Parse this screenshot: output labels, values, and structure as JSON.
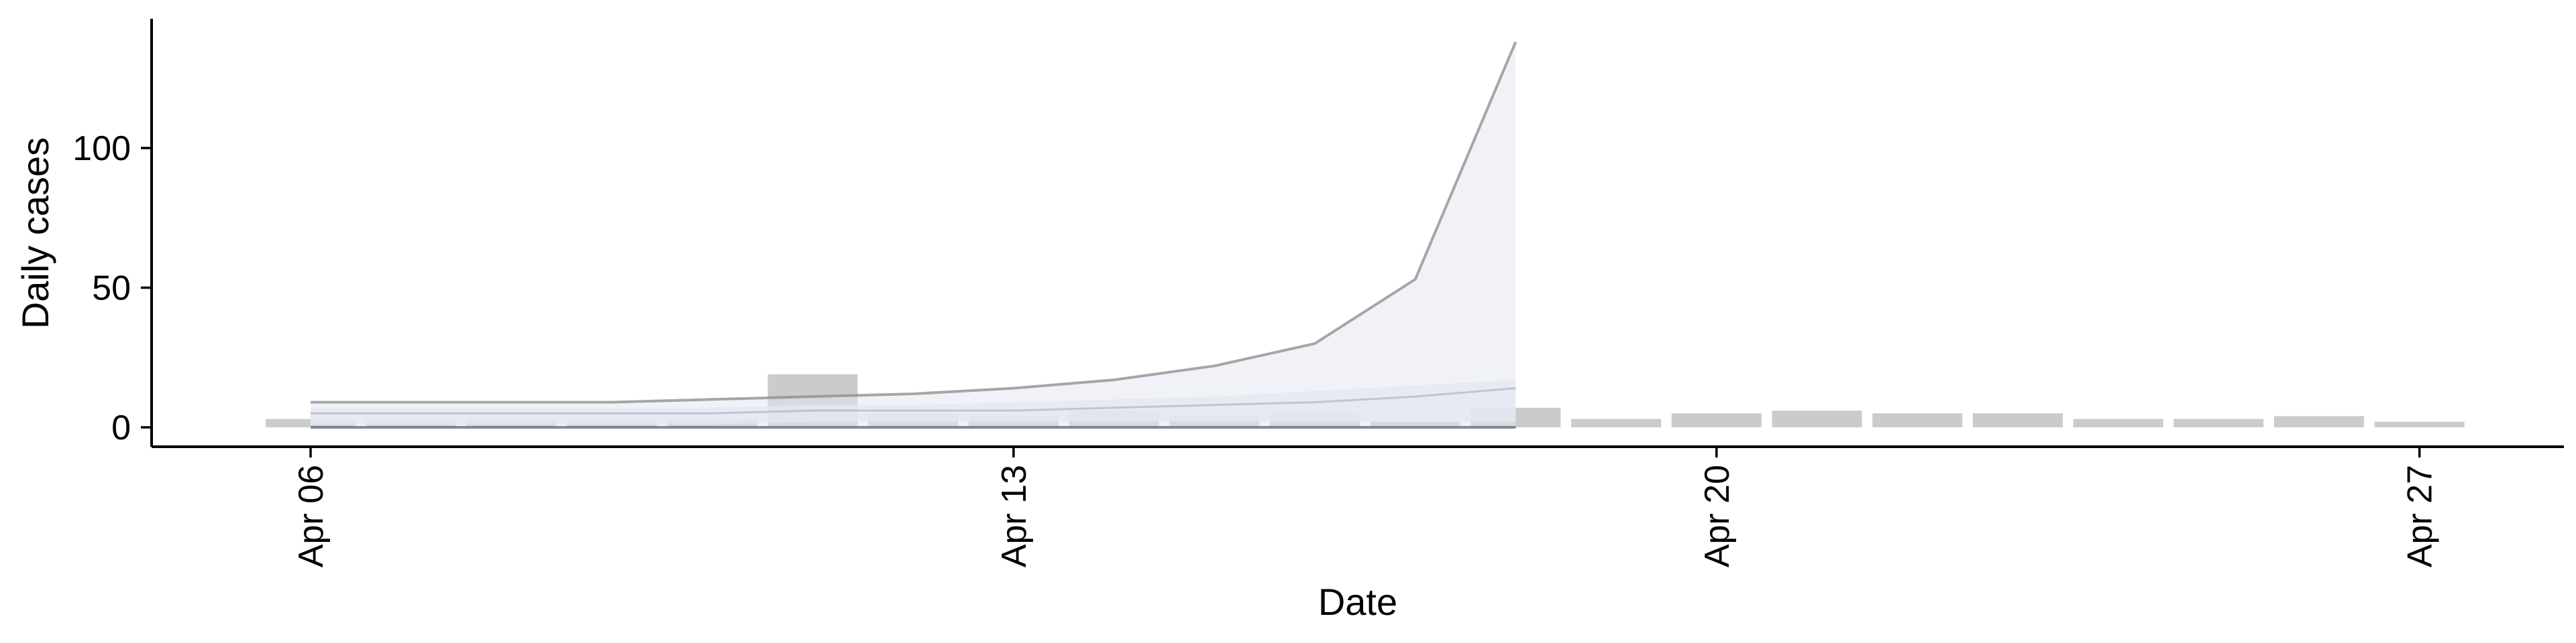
{
  "chart_data": {
    "type": "bar",
    "xlabel": "Date",
    "ylabel": "Daily cases",
    "x_tick_labels": [
      "Apr 06",
      "Apr 13",
      "Apr 20",
      "Apr 27"
    ],
    "x_tick_dates": [
      "2020-04-06",
      "2020-04-13",
      "2020-04-20",
      "2020-04-27"
    ],
    "y_ticks": [
      0,
      50,
      100
    ],
    "ylim": [
      -6,
      145
    ],
    "xlim": [
      "2020-04-04",
      "2020-04-29"
    ],
    "grid": false,
    "legend": "none",
    "bars": {
      "name": "",
      "color": "#c8c8c8",
      "dates": [
        "2020-04-06",
        "2020-04-07",
        "2020-04-08",
        "2020-04-09",
        "2020-04-10",
        "2020-04-11",
        "2020-04-12",
        "2020-04-13",
        "2020-04-14",
        "2020-04-15",
        "2020-04-16",
        "2020-04-17",
        "2020-04-18",
        "2020-04-19",
        "2020-04-20",
        "2020-04-21",
        "2020-04-22",
        "2020-04-23",
        "2020-04-24",
        "2020-04-25",
        "2020-04-26",
        "2020-04-27"
      ],
      "values": [
        3,
        3,
        3,
        3,
        3,
        19,
        5,
        4,
        6,
        4,
        5,
        2,
        7,
        3,
        5,
        6,
        5,
        5,
        3,
        3,
        4,
        2
      ]
    },
    "nowcast": {
      "color": "#9aa0b0",
      "dates": [
        "2020-04-06",
        "2020-04-07",
        "2020-04-08",
        "2020-04-09",
        "2020-04-10",
        "2020-04-11",
        "2020-04-12",
        "2020-04-13",
        "2020-04-14",
        "2020-04-15",
        "2020-04-16",
        "2020-04-17",
        "2020-04-18"
      ],
      "median": [
        5,
        5,
        5,
        5,
        5,
        6,
        6,
        6,
        7,
        8,
        9,
        11,
        14
      ],
      "lower_90": [
        0,
        0,
        0,
        0,
        0,
        0,
        0,
        0,
        0,
        0,
        0,
        0,
        0
      ],
      "upper_90": [
        9,
        9,
        9,
        9,
        10,
        11,
        12,
        14,
        17,
        22,
        30,
        53,
        138
      ],
      "lower_50": [
        1,
        1,
        1,
        1,
        1,
        2,
        2,
        2,
        2,
        2,
        2,
        2,
        2
      ],
      "upper_50": [
        7,
        7,
        7,
        7,
        7,
        8,
        8,
        9,
        10,
        11,
        13,
        15,
        17
      ]
    }
  }
}
